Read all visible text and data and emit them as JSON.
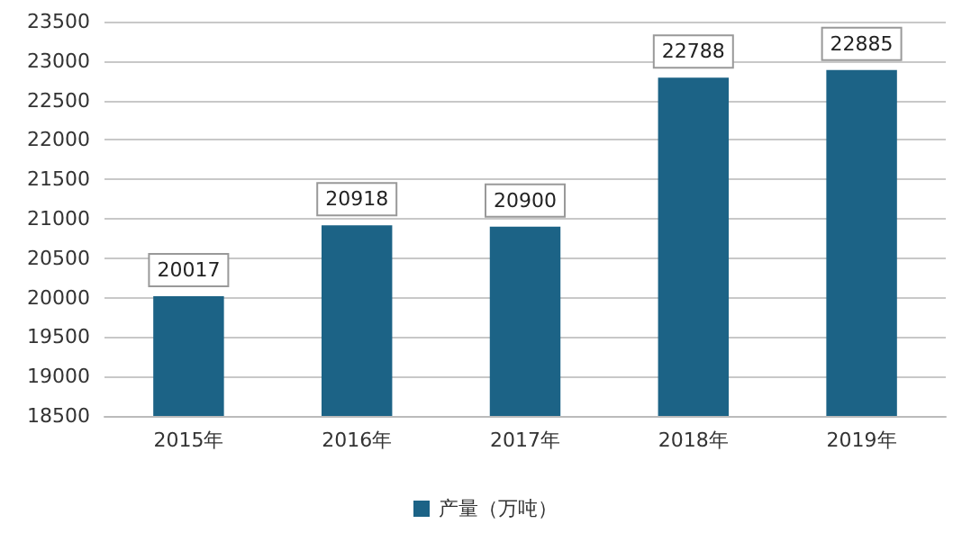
{
  "chart_data": {
    "type": "bar",
    "categories": [
      "2015年",
      "2016年",
      "2017年",
      "2018年",
      "2019年"
    ],
    "series": [
      {
        "name": "产量（万吨）",
        "color": "#1c6386",
        "values": [
          20017,
          20918,
          20900,
          22788,
          22885
        ]
      }
    ],
    "ylim": [
      18500,
      23500
    ],
    "yticks": [
      18500,
      19000,
      19500,
      20000,
      20500,
      21000,
      21500,
      22000,
      22500,
      23000,
      23500
    ],
    "grid": "y",
    "legend": "bottom",
    "data_labels": true
  }
}
